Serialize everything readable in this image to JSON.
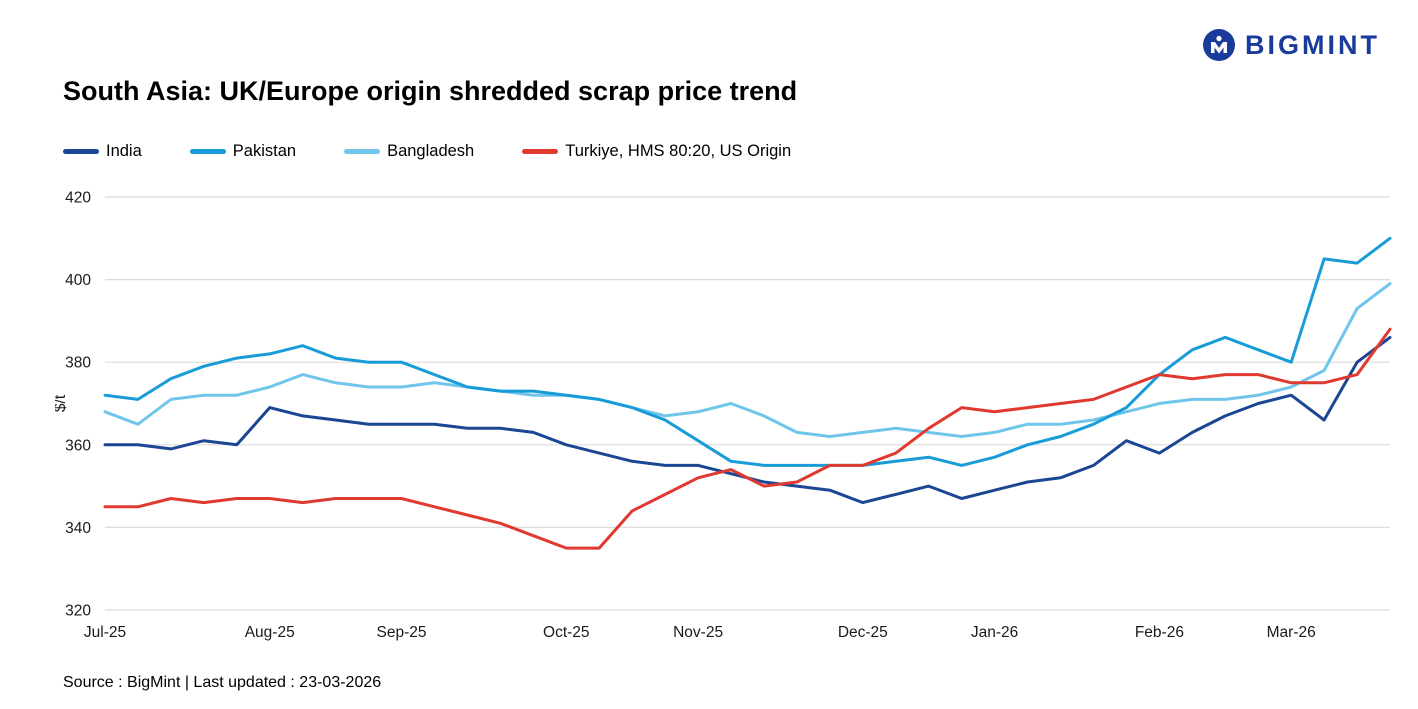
{
  "logo": {
    "text": "BIGMINT"
  },
  "title": "South Asia: UK/Europe origin shredded scrap price trend",
  "source": "Source : BigMint | Last updated : 23-03-2026",
  "legend": [
    {
      "label": "India",
      "color": "#1B4693"
    },
    {
      "label": "Pakistan",
      "color": "#189CD8"
    },
    {
      "label": "Bangladesh",
      "color": "#6FC6EA"
    },
    {
      "label": "Turkiye, HMS 80:20, US Origin",
      "color": "#E03A30"
    }
  ],
  "chart_data": {
    "type": "line",
    "title": "South Asia: UK/Europe origin shredded scrap price trend",
    "xlabel": "",
    "ylabel": "$/t",
    "ylim": [
      320,
      420
    ],
    "yticks": [
      320,
      340,
      360,
      380,
      400,
      420
    ],
    "grid": true,
    "legend_position": "top",
    "n_points": 40,
    "x_tick_labels": [
      "Jul-25",
      "Aug-25",
      "Sep-25",
      "Oct-25",
      "Nov-25",
      "Dec-25",
      "Jan-26",
      "Feb-26",
      "Mar-26"
    ],
    "x_tick_indices": [
      0,
      5,
      9,
      14,
      18,
      23,
      27,
      32,
      36
    ],
    "series": [
      {
        "name": "India",
        "color": "#1B4693",
        "values": [
          360,
          360,
          359,
          361,
          360,
          369,
          367,
          366,
          365,
          365,
          365,
          364,
          364,
          363,
          360,
          358,
          356,
          355,
          355,
          353,
          351,
          350,
          349,
          346,
          348,
          350,
          347,
          349,
          351,
          352,
          355,
          361,
          358,
          363,
          367,
          370,
          372,
          366,
          380,
          386
        ]
      },
      {
        "name": "Pakistan",
        "color": "#189CD8",
        "values": [
          372,
          371,
          376,
          379,
          381,
          382,
          384,
          381,
          380,
          380,
          377,
          374,
          373,
          373,
          372,
          371,
          369,
          366,
          361,
          356,
          355,
          355,
          355,
          355,
          356,
          357,
          355,
          357,
          360,
          362,
          365,
          369,
          377,
          383,
          386,
          383,
          380,
          405,
          404,
          410
        ]
      },
      {
        "name": "Bangladesh",
        "color": "#6FC6EA",
        "values": [
          368,
          365,
          371,
          372,
          372,
          374,
          377,
          375,
          374,
          374,
          375,
          374,
          373,
          372,
          372,
          371,
          369,
          367,
          368,
          370,
          367,
          363,
          362,
          363,
          364,
          363,
          362,
          363,
          365,
          365,
          366,
          368,
          370,
          371,
          371,
          372,
          374,
          378,
          393,
          399
        ]
      },
      {
        "name": "Turkiye, HMS 80:20, US Origin",
        "color": "#E03A30",
        "values": [
          345,
          345,
          347,
          346,
          347,
          347,
          346,
          347,
          347,
          347,
          345,
          343,
          341,
          338,
          335,
          335,
          344,
          348,
          352,
          354,
          350,
          351,
          355,
          355,
          358,
          364,
          369,
          368,
          369,
          370,
          371,
          374,
          377,
          376,
          377,
          377,
          375,
          375,
          377,
          388
        ]
      }
    ]
  }
}
